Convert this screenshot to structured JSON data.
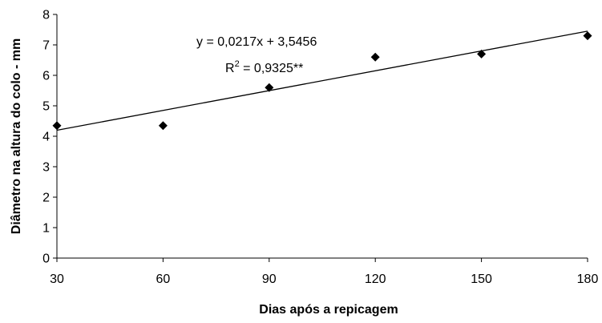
{
  "chart_data": {
    "type": "scatter",
    "title": "",
    "xlabel": "Dias após a repicagem",
    "ylabel": "Diâmetro na altura do colo - mm",
    "xlim": [
      30,
      180
    ],
    "ylim": [
      0,
      8
    ],
    "x_ticks": [
      30,
      60,
      90,
      120,
      150,
      180
    ],
    "y_ticks": [
      0,
      1,
      2,
      3,
      4,
      5,
      6,
      7,
      8
    ],
    "x_tick_labels": [
      "30",
      "60",
      "90",
      "120",
      "150",
      "180"
    ],
    "y_tick_labels": [
      "0",
      "1",
      "2",
      "3",
      "4",
      "5",
      "6",
      "7",
      "8"
    ],
    "grid": false,
    "legend": "none",
    "marker": "diamond",
    "color": "#000000",
    "series": [
      {
        "x": [
          30,
          60,
          90,
          120,
          150,
          180
        ],
        "y": [
          4.35,
          4.35,
          5.6,
          6.6,
          6.7,
          7.3
        ]
      }
    ],
    "trendline": {
      "type": "linear",
      "slope": 0.0217,
      "intercept": 3.5456
    },
    "annotations": {
      "equation": "y = 0,0217x + 3,5456",
      "r2_prefix": "R",
      "r2_sup": "2",
      "r2_value": " = 0,9325**"
    }
  }
}
